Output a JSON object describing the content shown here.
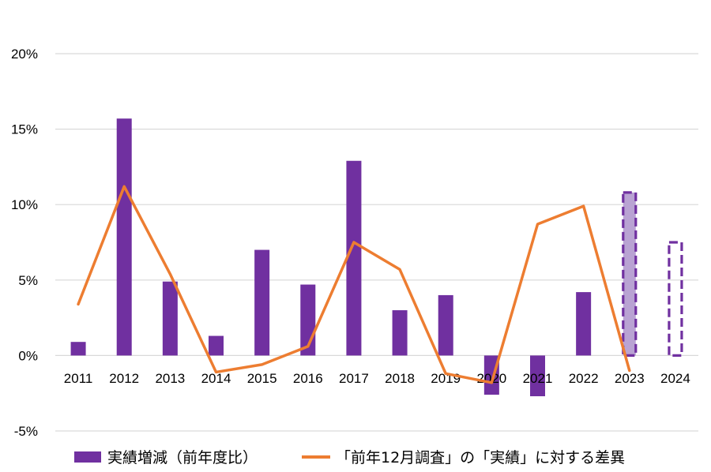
{
  "chart_data": {
    "type": "bar",
    "categories": [
      "2011",
      "2012",
      "2013",
      "2014",
      "2015",
      "2016",
      "2017",
      "2018",
      "2019",
      "2020",
      "2021",
      "2022",
      "2023",
      "2024"
    ],
    "y_ticks": [
      "20%",
      "15%",
      "10%",
      "5%",
      "0%",
      "-5%"
    ],
    "ylim": [
      -5,
      20
    ],
    "ytick_values": [
      20,
      15,
      10,
      5,
      0,
      -5
    ],
    "grid": true,
    "legend_position": "bottom",
    "series": [
      {
        "name": "実績増減（前年度比）",
        "kind": "bar",
        "color": "#7030a0",
        "values": [
          0.9,
          15.7,
          4.9,
          1.3,
          7.0,
          4.7,
          12.9,
          3.0,
          4.0,
          -2.6,
          -2.7,
          4.2,
          10.8,
          7.5
        ],
        "dashed_outline_categories": [
          "2023",
          "2024"
        ],
        "dashed_fill_2023": "#b9a3d3"
      },
      {
        "name": "「前年12月調査」の「実績」に対する差異",
        "kind": "line",
        "color": "#ed7d31",
        "values": [
          3.4,
          11.2,
          5.4,
          -1.1,
          -0.6,
          0.6,
          7.5,
          5.7,
          -1.2,
          -1.8,
          8.7,
          9.9,
          -1.0,
          null
        ]
      }
    ]
  }
}
